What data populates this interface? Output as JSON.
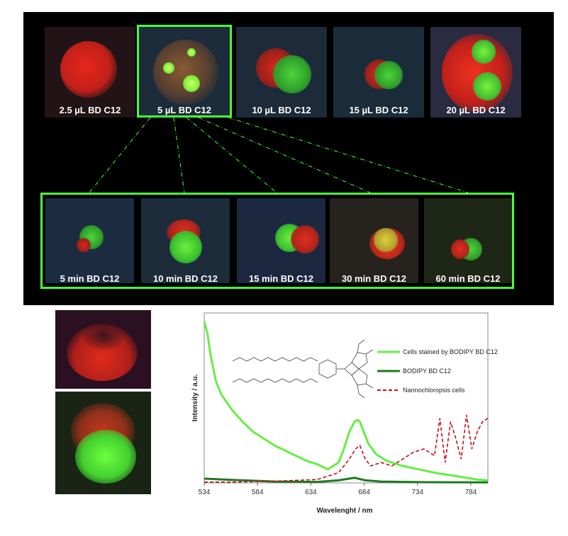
{
  "top_row_labels": [
    "2.5 µL BD C12",
    "5 µL BD C12",
    "10 µL BD C12",
    "15 µL BD C12",
    "20 µL BD C12"
  ],
  "time_row_labels": [
    "5 min BD C12",
    "10 min BD C12",
    "15 min BD C12",
    "30 min BD C12",
    "60 min BD C12"
  ],
  "colors": {
    "highlight": "#4cff3c",
    "red_stain": "#d42a1e",
    "green_stain": "#5cf03c",
    "dark_green": "#1e7a1e",
    "dashed_red": "#c0101a"
  },
  "chart_data": {
    "type": "line",
    "xlabel": "Wavelenght / nm",
    "ylabel": "Intensity / a.u.",
    "xticks": [
      "534",
      "584",
      "634",
      "684",
      "734",
      "784"
    ],
    "xlim": [
      534,
      800
    ],
    "ylim": [
      0,
      100
    ],
    "series": [
      {
        "name": "Cells stained by BODIPY BD C12",
        "style": "solid",
        "color": "#66ee44",
        "x": [
          534,
          537,
          540,
          545,
          550,
          560,
          570,
          580,
          590,
          600,
          610,
          620,
          630,
          640,
          650,
          660,
          665,
          670,
          675,
          678,
          680,
          683,
          688,
          695,
          705,
          720,
          735,
          750,
          770,
          790,
          800
        ],
        "y": [
          95,
          88,
          75,
          60,
          52,
          43,
          36,
          30,
          26,
          22,
          19,
          16,
          13,
          11,
          8,
          12,
          20,
          30,
          36,
          37,
          36,
          31,
          23,
          17,
          13,
          10,
          8,
          6,
          4,
          2,
          1.5
        ]
      },
      {
        "name": "BODIPY BD C12",
        "style": "solid",
        "color": "#1e7a1e",
        "x": [
          534,
          560,
          600,
          640,
          660,
          675,
          685,
          700,
          740,
          800
        ],
        "y": [
          2.5,
          1.8,
          0.8,
          0.6,
          1.5,
          3,
          1.5,
          0.8,
          0.4,
          0.3
        ]
      },
      {
        "name": "Nannochloropsis cells",
        "style": "dashed",
        "color": "#c0101a",
        "x": [
          534,
          560,
          600,
          640,
          660,
          670,
          676,
          680,
          685,
          690,
          700,
          710,
          720,
          730,
          740,
          750,
          755,
          760,
          765,
          770,
          775,
          780,
          785,
          790,
          795,
          800
        ],
        "y": [
          0.5,
          0.5,
          1,
          2,
          6,
          14,
          20,
          22,
          14,
          10,
          12,
          10,
          14,
          18,
          20,
          16,
          38,
          12,
          36,
          26,
          14,
          40,
          20,
          30,
          36,
          38
        ]
      }
    ],
    "legend_position": "top-right"
  }
}
